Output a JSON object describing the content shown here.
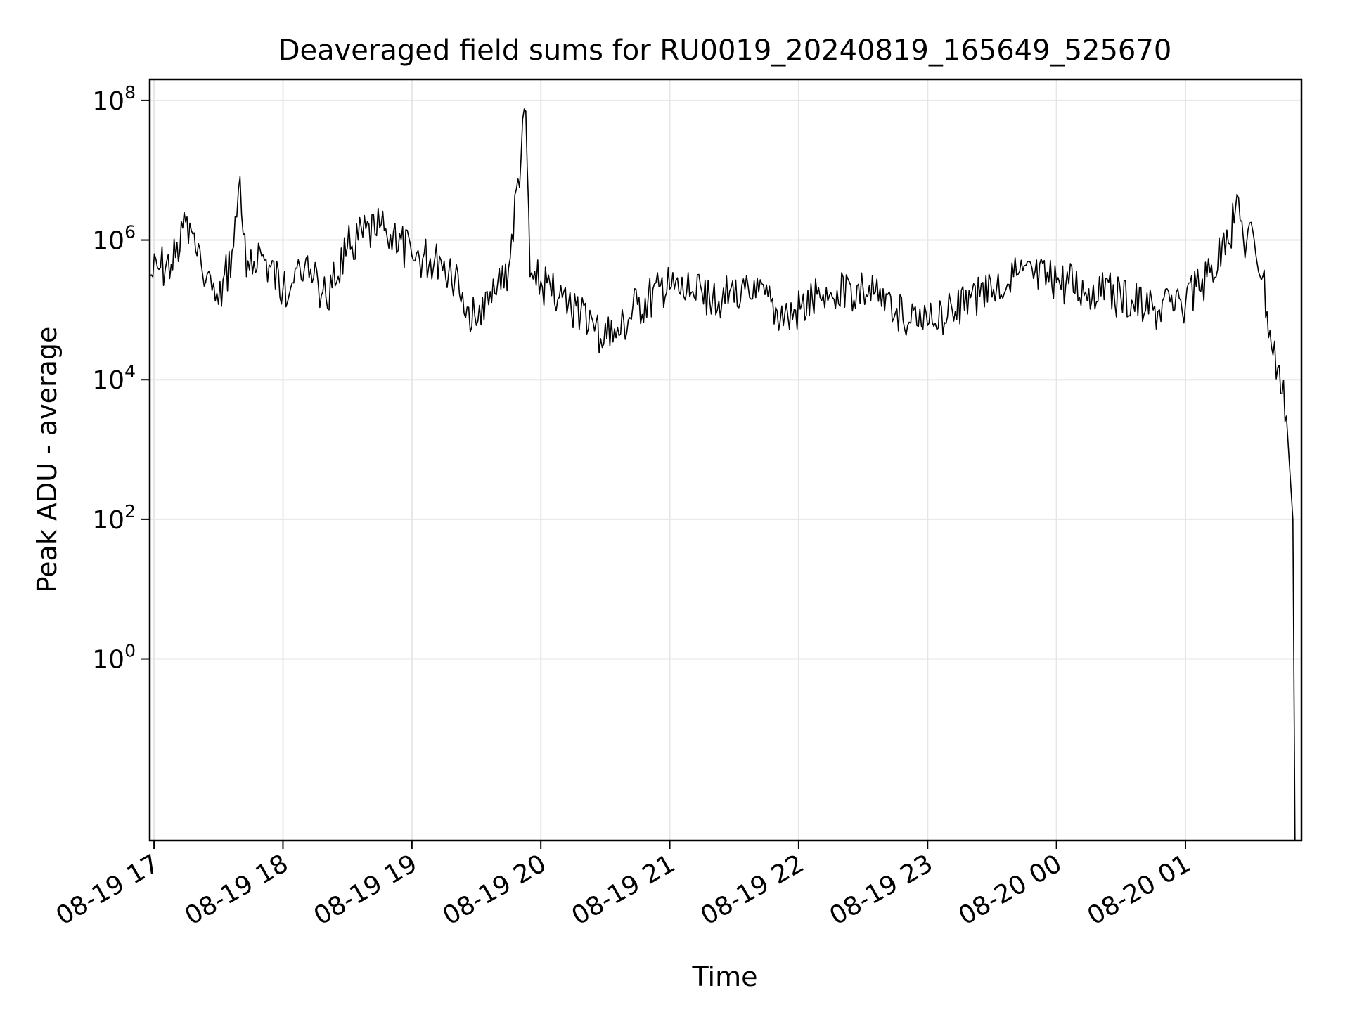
{
  "chart_data": {
    "type": "line",
    "title": "Deaveraged field sums for RU0019_20240819_165649_525670",
    "xlabel": "Time",
    "ylabel": "Peak ADU - average",
    "yscale": "log",
    "ylim": [
      0.0025,
      200000000
    ],
    "xlim": [
      "08-19 16:58",
      "08-20 01:54"
    ],
    "grid": true,
    "line_color": "#000000",
    "grid_color": "#e6e6e6",
    "x_ticks": [
      {
        "time": "08-19 17:00",
        "label": "08-19 17"
      },
      {
        "time": "08-19 18:00",
        "label": "08-19 18"
      },
      {
        "time": "08-19 19:00",
        "label": "08-19 19"
      },
      {
        "time": "08-19 20:00",
        "label": "08-19 20"
      },
      {
        "time": "08-19 21:00",
        "label": "08-19 21"
      },
      {
        "time": "08-19 22:00",
        "label": "08-19 22"
      },
      {
        "time": "08-19 23:00",
        "label": "08-19 23"
      },
      {
        "time": "08-20 00:00",
        "label": "08-20 00"
      },
      {
        "time": "08-20 01:00",
        "label": "08-20 01"
      }
    ],
    "y_ticks": [
      {
        "value": 1,
        "base": "10",
        "exp": "0"
      },
      {
        "value": 100,
        "base": "10",
        "exp": "2"
      },
      {
        "value": 10000,
        "base": "10",
        "exp": "4"
      },
      {
        "value": 1000000,
        "base": "10",
        "exp": "6"
      },
      {
        "value": 100000000,
        "base": "10",
        "exp": "8"
      }
    ],
    "series": [
      {
        "points": [
          [
            "08-19 16:58",
            300000
          ],
          [
            "08-19 17:03",
            400000
          ],
          [
            "08-19 17:08",
            450000
          ],
          [
            "08-19 17:12",
            700000
          ],
          [
            "08-19 17:14",
            2500000
          ],
          [
            "08-19 17:16",
            900000
          ],
          [
            "08-19 17:20",
            600000
          ],
          [
            "08-19 17:24",
            250000
          ],
          [
            "08-19 17:30",
            120000
          ],
          [
            "08-19 17:37",
            800000
          ],
          [
            "08-19 17:40",
            8000000
          ],
          [
            "08-19 17:43",
            300000
          ],
          [
            "08-19 17:50",
            600000
          ],
          [
            "08-19 18:00",
            200000
          ],
          [
            "08-19 18:10",
            400000
          ],
          [
            "08-19 18:20",
            150000
          ],
          [
            "08-19 18:30",
            800000
          ],
          [
            "08-19 18:45",
            1500000
          ],
          [
            "08-19 19:00",
            600000
          ],
          [
            "08-19 19:15",
            500000
          ],
          [
            "08-19 19:30",
            60000
          ],
          [
            "08-19 19:45",
            400000
          ],
          [
            "08-19 19:53",
            70000000
          ],
          [
            "08-19 19:55",
            300000
          ],
          [
            "08-19 20:10",
            150000
          ],
          [
            "08-19 20:25",
            50000
          ],
          [
            "08-19 20:35",
            40000
          ],
          [
            "08-19 20:45",
            120000
          ],
          [
            "08-19 21:00",
            200000
          ],
          [
            "08-19 21:20",
            150000
          ],
          [
            "08-19 21:40",
            150000
          ],
          [
            "08-19 21:55",
            80000
          ],
          [
            "08-19 22:10",
            150000
          ],
          [
            "08-19 22:30",
            200000
          ],
          [
            "08-19 22:45",
            90000
          ],
          [
            "08-19 23:00",
            60000
          ],
          [
            "08-19 23:20",
            150000
          ],
          [
            "08-19 23:40",
            300000
          ],
          [
            "08-20 00:00",
            250000
          ],
          [
            "08-20 00:15",
            200000
          ],
          [
            "08-20 00:30",
            150000
          ],
          [
            "08-20 00:45",
            100000
          ],
          [
            "08-20 01:00",
            120000
          ],
          [
            "08-20 01:10",
            300000
          ],
          [
            "08-20 01:20",
            900000
          ],
          [
            "08-20 01:24",
            4500000
          ],
          [
            "08-20 01:27",
            1000000
          ],
          [
            "08-20 01:32",
            1000000
          ],
          [
            "08-20 01:36",
            300000
          ],
          [
            "08-20 01:40",
            30000
          ],
          [
            "08-20 01:43",
            15000
          ],
          [
            "08-20 01:47",
            3000
          ],
          [
            "08-20 01:50",
            100
          ],
          [
            "08-20 01:51",
            0.0025
          ]
        ]
      }
    ]
  }
}
